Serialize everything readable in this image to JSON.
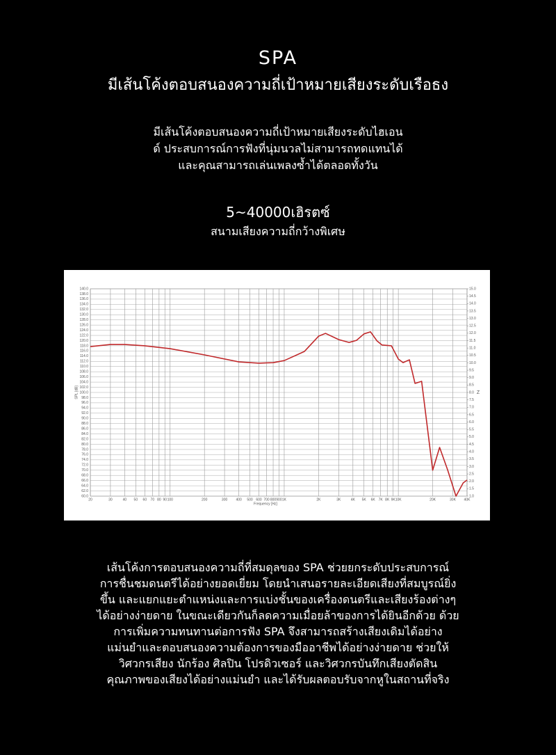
{
  "header": {
    "title": "SPA",
    "subtitle": "มีเส้นโค้งตอบสนองความถี่เป้าหมายเสียงระดับเรือธง"
  },
  "intro": {
    "lines": [
      "มีเส้นโค้งตอบสนองความถี่เป้าหมายเสียงระดับไฮเอน",
      "ด์ ประสบการณ์การฟังที่นุ่มนวลไม่สามารถทดแทนได้",
      "และคุณสามารถเล่นเพลงซ้ำได้ตลอดทั้งวัน"
    ]
  },
  "spec": {
    "value": "5~40000เฮิรตซ์",
    "label": "สนามเสียงความถี่กว้างพิเศษ"
  },
  "body": {
    "lines": [
      "เส้นโค้งการตอบสนองความถี่ที่สมดุลของ SPA ช่วยยกระดับประสบการณ์",
      "การชื่นชมดนตรีได้อย่างยอดเยี่ยม โดยนำเสนอรายละเอียดเสียงที่สมบูรณ์ยิ่ง",
      "ขึ้น และแยกแยะตำแหน่งและการแบ่งชั้นของเครื่องดนตรีและเสียงร้องต่างๆ",
      "ได้อย่างง่ายดาย ในขณะเดียวกันก็ลดความเมื่อยล้าของการได้ยินอีกด้วย ด้วย",
      "การเพิ่มความทนทานต่อการฟัง SPA จึงสามารถสร้างเสียงเดิมได้อย่าง",
      "แม่นยำและตอบสนองความต้องการของมืออาชีพได้อย่างง่ายดาย ช่วยให้",
      "วิศวกรเสียง นักร้อง ศิลปิน โปรดิวเซอร์ และวิศวกรบันทึกเสียงตัดสิน",
      "คุณภาพของเสียงได้อย่างแม่นยำ และได้รับผลตอบรับจากหูในสถานที่จริง"
    ]
  },
  "chart_data": {
    "type": "line",
    "x_label": "Frequency [Hz]",
    "y_label": "SPL [dB]",
    "y2_label": "Z",
    "xscale": "log",
    "grid": true,
    "x": [
      20,
      30,
      40,
      60,
      100,
      200,
      400,
      600,
      800,
      1000,
      1500,
      2000,
      2300,
      3000,
      3700,
      4300,
      5000,
      5700,
      6500,
      7200,
      8700,
      10000,
      11000,
      12500,
      14000,
      16000,
      20000,
      23000,
      27000,
      32000,
      37000,
      40000
    ],
    "series": [
      {
        "name": "SPA",
        "color": "#c0292b",
        "values": [
          117.7,
          118.5,
          118.5,
          118,
          116.9,
          114.5,
          111.8,
          111.3,
          111.5,
          112.3,
          115.8,
          121.7,
          122.8,
          120.4,
          119.3,
          120.1,
          122.6,
          123.4,
          119.9,
          118.3,
          118,
          112.9,
          111.5,
          112.6,
          103.5,
          104.3,
          70,
          78.8,
          70.2,
          60,
          65.1,
          66.2
        ]
      }
    ],
    "xlim": [
      20,
      40000
    ],
    "xticks": [
      20,
      30,
      40,
      50,
      60,
      70,
      80,
      90,
      100,
      200,
      300,
      400,
      500,
      600,
      700,
      800,
      900,
      {
        "value": 1000,
        "label": "1K"
      },
      {
        "value": 2000,
        "label": "2K"
      },
      {
        "value": 3000,
        "label": "3K"
      },
      {
        "value": 4000,
        "label": "4K"
      },
      {
        "value": 5000,
        "label": "5K"
      },
      {
        "value": 6000,
        "label": "6K"
      },
      {
        "value": 7000,
        "label": "7K"
      },
      {
        "value": 8000,
        "label": "8K"
      },
      {
        "value": 9000,
        "label": "9K"
      },
      {
        "value": 10000,
        "label": "10K"
      },
      {
        "value": 20000,
        "label": "20K"
      },
      {
        "value": 30000,
        "label": "30K"
      },
      {
        "value": 40000,
        "label": "40K"
      }
    ],
    "ylim": [
      60,
      140
    ],
    "yticks": [
      {
        "value": 60,
        "label": "60.0"
      },
      {
        "value": 62,
        "label": "62.0"
      },
      {
        "value": 64,
        "label": "64.0"
      },
      {
        "value": 66,
        "label": "66.0"
      },
      {
        "value": 68,
        "label": "68.0"
      },
      {
        "value": 70,
        "label": "70.0"
      },
      {
        "value": 72,
        "label": "72.0"
      },
      {
        "value": 74,
        "label": "74.0"
      },
      {
        "value": 76,
        "label": "76.0"
      },
      {
        "value": 78,
        "label": "78.0"
      },
      {
        "value": 80,
        "label": "80.0"
      },
      {
        "value": 82,
        "label": "82.0"
      },
      {
        "value": 84,
        "label": "84.0"
      },
      {
        "value": 86,
        "label": "86.0"
      },
      {
        "value": 88,
        "label": "88.0"
      },
      {
        "value": 90,
        "label": "90.0"
      },
      {
        "value": 92,
        "label": "92.0"
      },
      {
        "value": 94,
        "label": "94.0"
      },
      {
        "value": 96,
        "label": "96.0"
      },
      {
        "value": 98,
        "label": "98.0"
      },
      {
        "value": 100,
        "label": "100.0"
      },
      {
        "value": 102,
        "label": "102.0"
      },
      {
        "value": 104,
        "label": "104.0"
      },
      {
        "value": 106,
        "label": "106.0"
      },
      {
        "value": 108,
        "label": "108.0"
      },
      {
        "value": 110,
        "label": "110.0"
      },
      {
        "value": 112,
        "label": "112.0"
      },
      {
        "value": 114,
        "label": "114.0"
      },
      {
        "value": 116,
        "label": "116.0"
      },
      {
        "value": 118,
        "label": "118.0"
      },
      {
        "value": 120,
        "label": "120.0"
      },
      {
        "value": 122,
        "label": "122.0"
      },
      {
        "value": 124,
        "label": "124.0"
      },
      {
        "value": 126,
        "label": "126.0"
      },
      {
        "value": 128,
        "label": "128.0"
      },
      {
        "value": 130,
        "label": "130.0"
      },
      {
        "value": 132,
        "label": "132.0"
      },
      {
        "value": 134,
        "label": "134.0"
      },
      {
        "value": 136,
        "label": "136.0"
      },
      {
        "value": 138,
        "label": "138.0"
      },
      {
        "value": 140,
        "label": "140.0"
      }
    ],
    "y2lim": [
      1,
      15
    ],
    "y2ticks": [
      {
        "value": 1,
        "label": "1.0"
      },
      1.5,
      {
        "value": 2,
        "label": "2.0"
      },
      2.5,
      {
        "value": 3,
        "label": "3.0"
      },
      3.5,
      {
        "value": 4,
        "label": "4.0"
      },
      4.5,
      {
        "value": 5,
        "label": "5.0"
      },
      5.5,
      {
        "value": 6,
        "label": "6.0"
      },
      6.5,
      {
        "value": 7,
        "label": "7.0"
      },
      7.5,
      {
        "value": 8,
        "label": "8.0"
      },
      8.5,
      {
        "value": 9,
        "label": "9.0"
      },
      9.5,
      {
        "value": 10,
        "label": "10.0"
      },
      10.5,
      {
        "value": 11,
        "label": "11.0"
      },
      11.5,
      {
        "value": 12,
        "label": "12.0"
      },
      12.5,
      {
        "value": 13,
        "label": "13.0"
      },
      13.5,
      {
        "value": 14,
        "label": "14.0"
      },
      14.5,
      {
        "value": 15,
        "label": "15.0"
      }
    ]
  }
}
